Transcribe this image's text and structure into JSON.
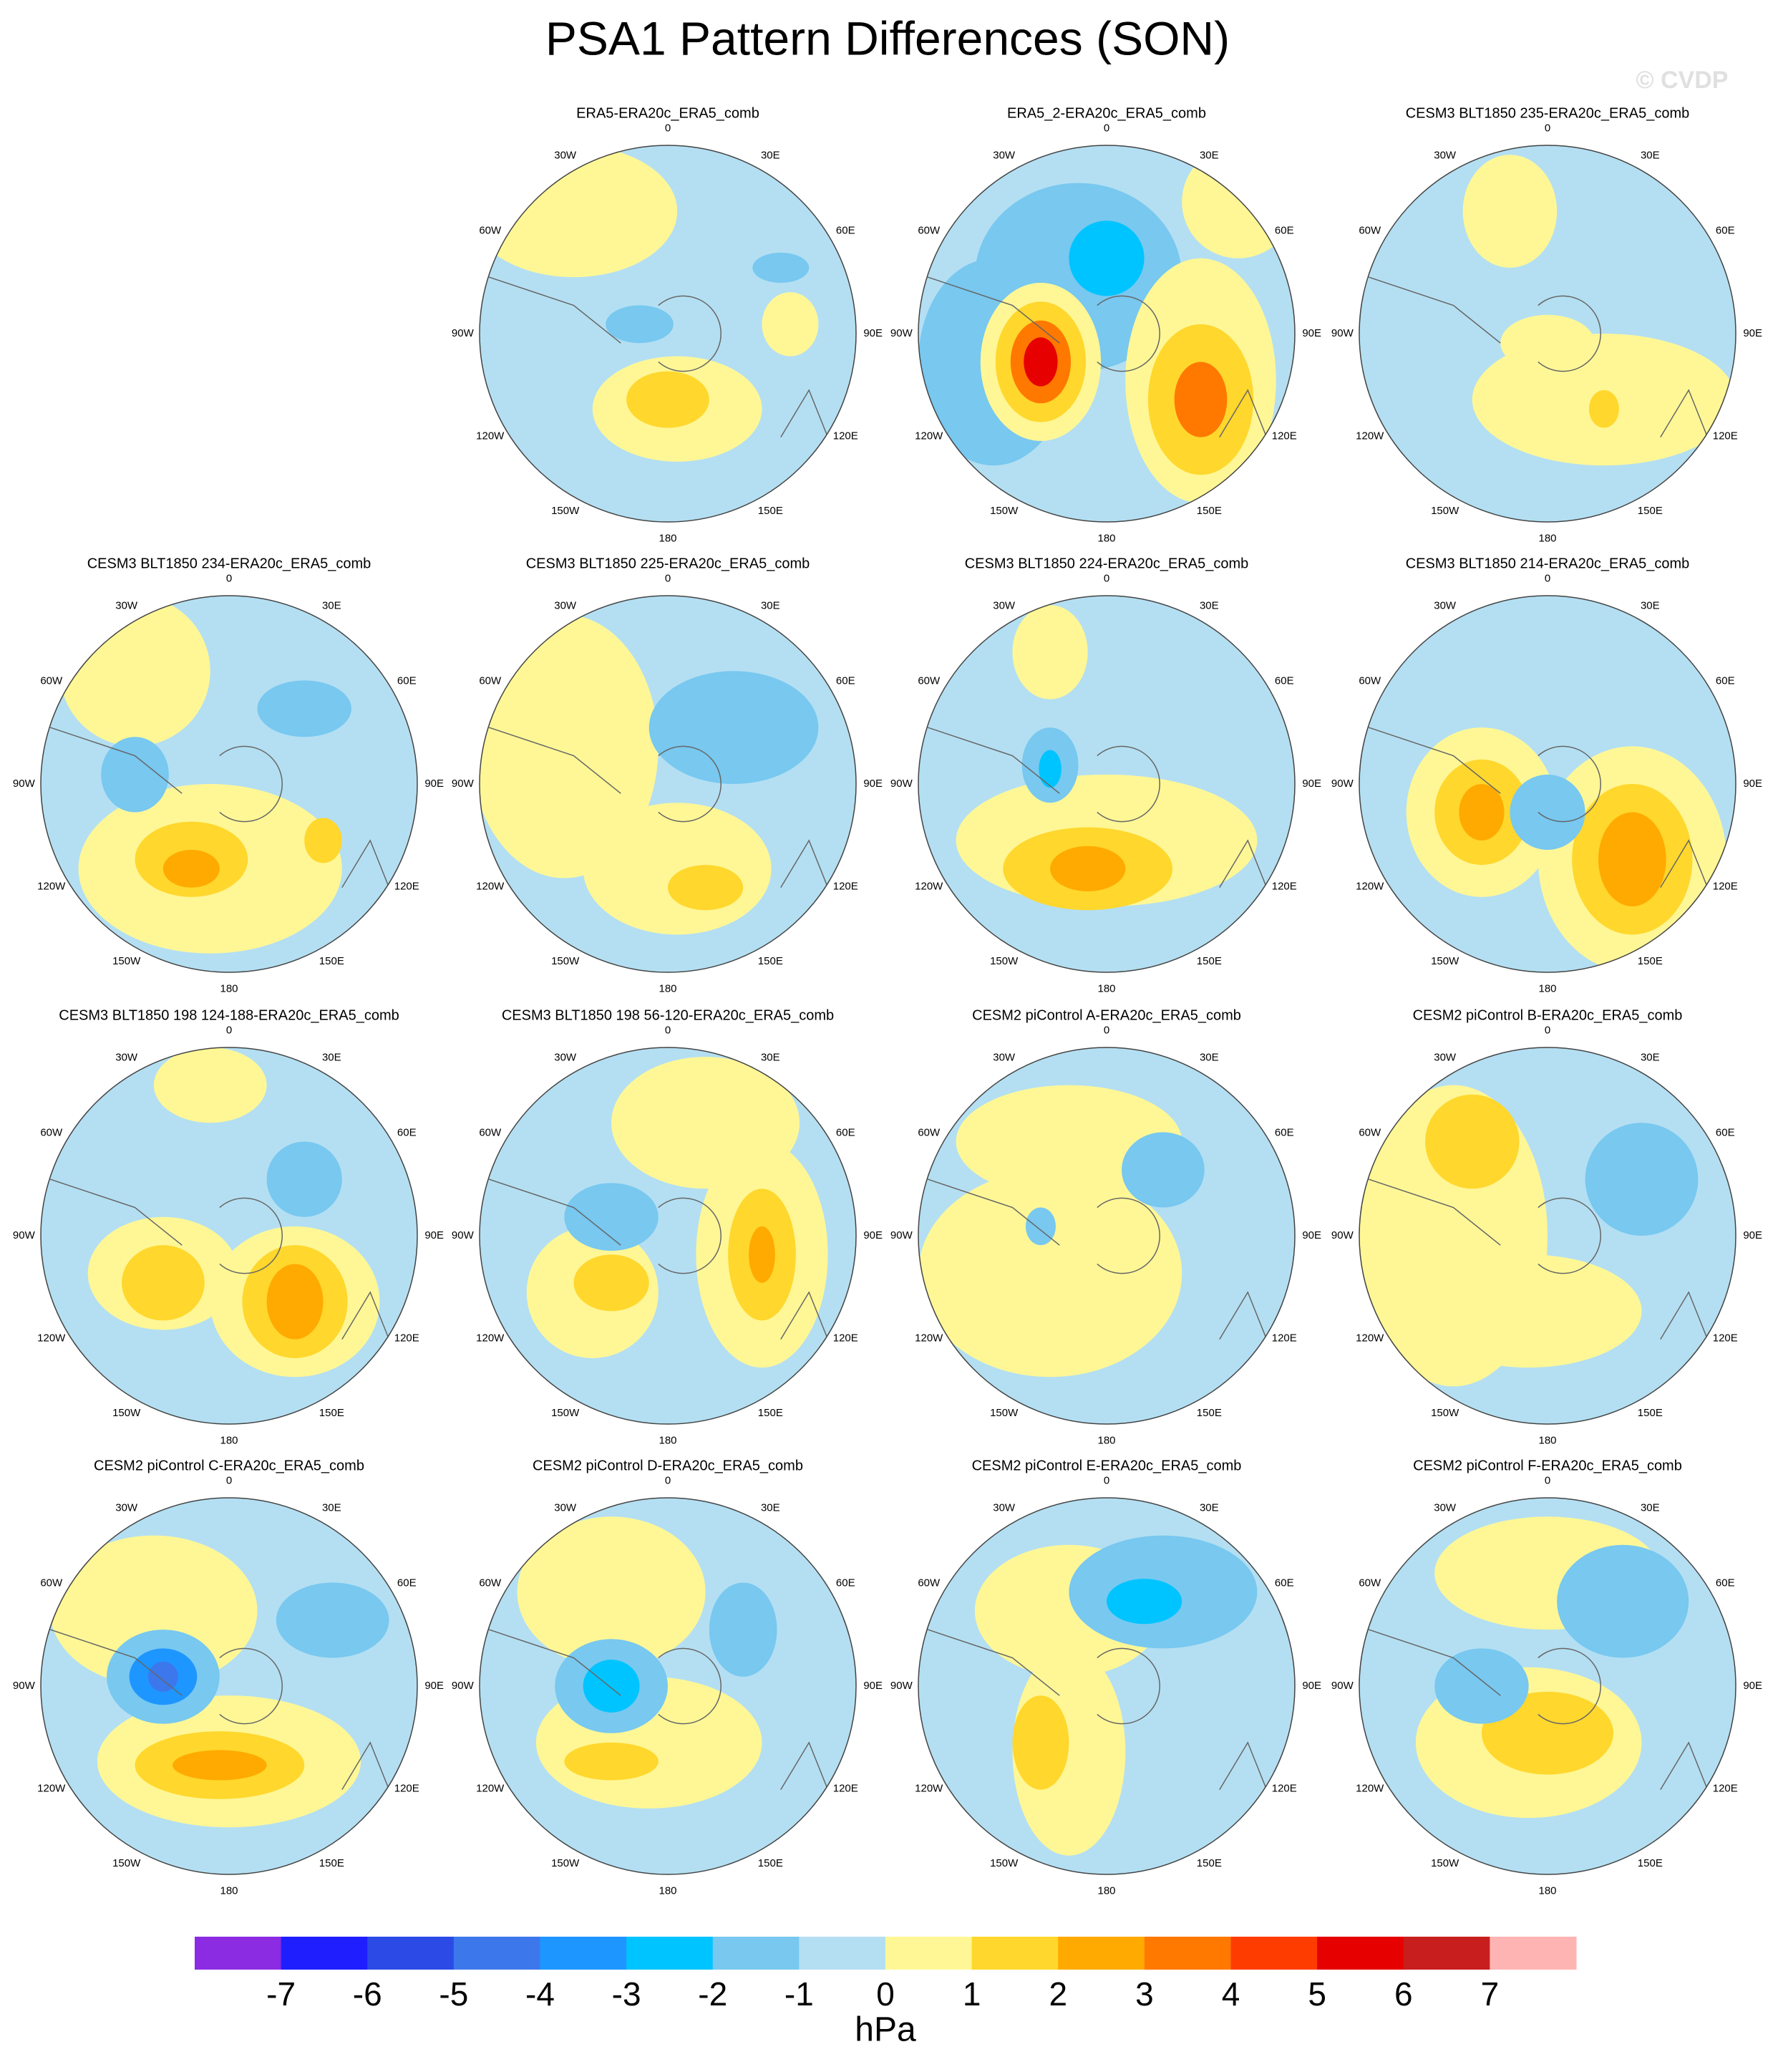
{
  "title": "PSA1 Pattern Differences (SON)",
  "watermark": "© CVDP",
  "longitude_labels": [
    "0",
    "30E",
    "60E",
    "90E",
    "120E",
    "150E",
    "180",
    "150W",
    "120W",
    "90W",
    "60W",
    "30W"
  ],
  "panels": [
    {
      "title": "ERA5-ERA20c_ERA5_comb"
    },
    {
      "title": "ERA5_2-ERA20c_ERA5_comb"
    },
    {
      "title": "CESM3 BLT1850 235-ERA20c_ERA5_comb"
    },
    {
      "title": "CESM3 BLT1850 234-ERA20c_ERA5_comb"
    },
    {
      "title": "CESM3 BLT1850 225-ERA20c_ERA5_comb"
    },
    {
      "title": "CESM3 BLT1850 224-ERA20c_ERA5_comb"
    },
    {
      "title": "CESM3 BLT1850 214-ERA20c_ERA5_comb"
    },
    {
      "title": "CESM3 BLT1850 198 124-188-ERA20c_ERA5_comb"
    },
    {
      "title": "CESM3 BLT1850 198 56-120-ERA20c_ERA5_comb"
    },
    {
      "title": "CESM2 piControl A-ERA20c_ERA5_comb"
    },
    {
      "title": "CESM2 piControl B-ERA20c_ERA5_comb"
    },
    {
      "title": "CESM2 piControl C-ERA20c_ERA5_comb"
    },
    {
      "title": "CESM2 piControl D-ERA20c_ERA5_comb"
    },
    {
      "title": "CESM2 piControl E-ERA20c_ERA5_comb"
    },
    {
      "title": "CESM2 piControl F-ERA20c_ERA5_comb"
    }
  ],
  "colorbar": {
    "levels": [
      -7,
      -6,
      -5,
      -4,
      -3,
      -2,
      -1,
      0,
      1,
      2,
      3,
      4,
      5,
      6,
      7
    ],
    "colors": [
      "#8b2be2",
      "#1e1eff",
      "#2b4ae6",
      "#3c78ec",
      "#1e96ff",
      "#00c4ff",
      "#78c8f0",
      "#b4dff2",
      "#fff796",
      "#ffd72d",
      "#ffaa00",
      "#ff7800",
      "#ff3c00",
      "#e60000",
      "#c81e1e",
      "#ffb4b4"
    ],
    "label": "hPa"
  }
}
